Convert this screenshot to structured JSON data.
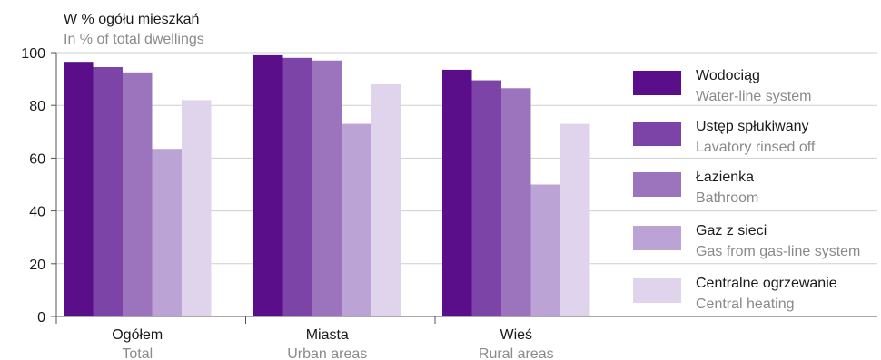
{
  "chart_data": {
    "type": "bar",
    "title": "",
    "ylabel_pl": "W % ogółu mieszkań",
    "ylabel_en": "In % of total dwellings",
    "ylim": [
      0,
      100
    ],
    "yticks": [
      0,
      20,
      40,
      60,
      80,
      100
    ],
    "grid": true,
    "legend_position": "right",
    "categories": [
      {
        "pl": "Ogółem",
        "en": "Total"
      },
      {
        "pl": "Miasta",
        "en": "Urban areas"
      },
      {
        "pl": "Wieś",
        "en": "Rural areas"
      }
    ],
    "series": [
      {
        "name_pl": "Wodociąg",
        "name_en": "Water-line system",
        "color": "#5a0e8a",
        "values": [
          96.5,
          99,
          93.5
        ]
      },
      {
        "name_pl": "Ustęp spłukiwany",
        "name_en": "Lavatory rinsed off",
        "color": "#7b44a6",
        "values": [
          94.5,
          98,
          89.5
        ]
      },
      {
        "name_pl": "Łazienka",
        "name_en": "Bathroom",
        "color": "#9b74bd",
        "values": [
          92.5,
          97,
          86.5
        ]
      },
      {
        "name_pl": "Gaz z sieci",
        "name_en": "Gas from gas-line system",
        "color": "#bba4d5",
        "values": [
          63.5,
          73,
          50
        ]
      },
      {
        "name_pl": "Centralne ogrzewanie",
        "name_en": "Central heating",
        "color": "#dfd4ec",
        "values": [
          82,
          88,
          73
        ]
      }
    ]
  }
}
